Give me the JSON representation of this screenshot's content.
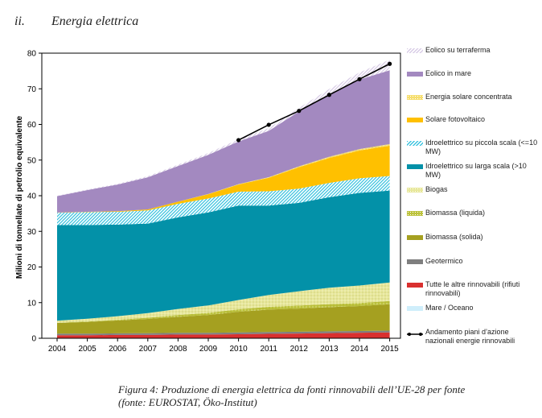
{
  "section": {
    "number": "ii.",
    "title": "Energia elettrica"
  },
  "caption": {
    "line1": "Figura 4: Produzione di energia elettrica da fonti rinnovabili dell’UE-28 per fonte",
    "line2": "(fonte: EUROSTAT, Öko-Institut)"
  },
  "chart_data": {
    "type": "area",
    "x": [
      2004,
      2005,
      2006,
      2007,
      2008,
      2009,
      2010,
      2011,
      2012,
      2013,
      2014,
      2015
    ],
    "ylabel": "Milioni di tonnellate di petrolio equivalente",
    "xlabel": "",
    "ylim": [
      0,
      80
    ],
    "yticks": [
      0,
      10,
      20,
      30,
      40,
      50,
      60,
      70,
      80
    ],
    "grid": false,
    "legend_position": "right",
    "stacking_order": "bottom-to-top",
    "series": [
      {
        "name": "Mare / Oceano",
        "color": "#cfeefb",
        "pattern": "solid",
        "values": [
          0.04,
          0.04,
          0.04,
          0.04,
          0.04,
          0.04,
          0.04,
          0.04,
          0.04,
          0.04,
          0.04,
          0.04
        ]
      },
      {
        "name": "Tutte le altre rinnovabili (rifiuti rinnovabili)",
        "color": "#d9302f",
        "pattern": "solid",
        "values": [
          0.8,
          0.8,
          0.9,
          0.9,
          1.0,
          1.0,
          1.1,
          1.2,
          1.3,
          1.4,
          1.5,
          1.6
        ]
      },
      {
        "name": "Geotermico",
        "color": "#7f7f7f",
        "pattern": "solid",
        "values": [
          0.45,
          0.45,
          0.45,
          0.48,
          0.48,
          0.48,
          0.5,
          0.5,
          0.5,
          0.5,
          0.5,
          0.5
        ]
      },
      {
        "name": "Biomassa (solida)",
        "color": "#a5a020",
        "pattern": "solid",
        "values": [
          3.0,
          3.3,
          3.6,
          4.0,
          4.5,
          5.0,
          5.8,
          6.3,
          6.5,
          6.8,
          7.0,
          7.4
        ]
      },
      {
        "name": "Biomassa (liquida)",
        "color": "#bcc23b",
        "pattern": "dots",
        "values": [
          0.05,
          0.1,
          0.2,
          0.35,
          0.5,
          0.6,
          0.7,
          0.8,
          0.85,
          0.85,
          0.85,
          0.9
        ]
      },
      {
        "name": "Biogas",
        "color": "#e7e79a",
        "pattern": "dots",
        "values": [
          0.6,
          0.8,
          1.0,
          1.3,
          1.7,
          2.1,
          2.6,
          3.3,
          4.0,
          4.6,
          4.9,
          5.2
        ]
      },
      {
        "name": "Idroelettrico su larga scala (>10 MW)",
        "color": "#0391a8",
        "pattern": "solid",
        "values": [
          26.8,
          26.3,
          25.7,
          25.1,
          25.7,
          26.1,
          26.5,
          25.1,
          24.8,
          25.4,
          26.0,
          25.8
        ]
      },
      {
        "name": "Idroelettrico su piccola scala (<=10 MW)",
        "color": "#3cc3df",
        "pattern": "hatch",
        "values": [
          3.5,
          3.6,
          3.6,
          3.7,
          3.8,
          3.9,
          3.9,
          4.0,
          4.0,
          4.0,
          4.1,
          4.1
        ]
      },
      {
        "name": "Solare fotovoltaico",
        "color": "#ffc000",
        "pattern": "solid",
        "values": [
          0.05,
          0.1,
          0.15,
          0.3,
          0.6,
          1.2,
          2.0,
          3.8,
          6.0,
          7.0,
          7.8,
          8.5
        ]
      },
      {
        "name": "Energia solare concentrata",
        "color": "#f6de6e",
        "pattern": "dots",
        "values": [
          0.0,
          0.0,
          0.0,
          0.0,
          0.0,
          0.05,
          0.1,
          0.15,
          0.25,
          0.35,
          0.4,
          0.45
        ]
      },
      {
        "name": "Eolico in mare",
        "color": "#a389c0",
        "pattern": "solid",
        "values": [
          4.6,
          6.1,
          7.5,
          9.0,
          10.0,
          11.0,
          12.0,
          13.0,
          15.4,
          17.5,
          19.5,
          20.7
        ]
      },
      {
        "name": "Eolico su terraferma",
        "color": "#d8cce6",
        "pattern": "hatch",
        "values": [
          0.1,
          0.15,
          0.2,
          0.3,
          0.4,
          0.5,
          0.6,
          0.8,
          1.0,
          1.5,
          2.0,
          3.0
        ]
      }
    ],
    "line_series": {
      "name": "Andamento piani d’azione nazionali energie rinnovabili",
      "color": "#000000",
      "x": [
        2010,
        2011,
        2012,
        2013,
        2014,
        2015
      ],
      "values": [
        55.6,
        59.9,
        63.8,
        68.3,
        72.7,
        77.0
      ]
    }
  },
  "legend": [
    {
      "label": "Eolico su terraferma",
      "color": "#d8cce6",
      "pattern": "hatch"
    },
    {
      "label": "Eolico in mare",
      "color": "#a389c0",
      "pattern": "solid"
    },
    {
      "label": "Energia solare concentrata",
      "color": "#f6de6e",
      "pattern": "dots"
    },
    {
      "label": "Solare fotovoltaico",
      "color": "#ffc000",
      "pattern": "solid"
    },
    {
      "label": "Idroelettrico su piccola scala (<=10 MW)",
      "color": "#3cc3df",
      "pattern": "hatch"
    },
    {
      "label": "Idroelettrico su larga scala (>10 MW)",
      "color": "#0391a8",
      "pattern": "solid"
    },
    {
      "label": "Biogas",
      "color": "#e7e79a",
      "pattern": "dots"
    },
    {
      "label": "Biomassa (liquida)",
      "color": "#bcc23b",
      "pattern": "dots"
    },
    {
      "label": "Biomassa (solida)",
      "color": "#a5a020",
      "pattern": "solid"
    },
    {
      "label": "Geotermico",
      "color": "#7f7f7f",
      "pattern": "solid"
    },
    {
      "label": "Tutte le altre rinnovabili (rifiuti rinnovabili)",
      "color": "#d9302f",
      "pattern": "solid"
    },
    {
      "label": "Mare / Oceano",
      "color": "#cfeefb",
      "pattern": "solid"
    },
    {
      "label": "Andamento piani d’azione nazionali energie rinnovabili",
      "color": "#000000",
      "pattern": "line"
    }
  ]
}
